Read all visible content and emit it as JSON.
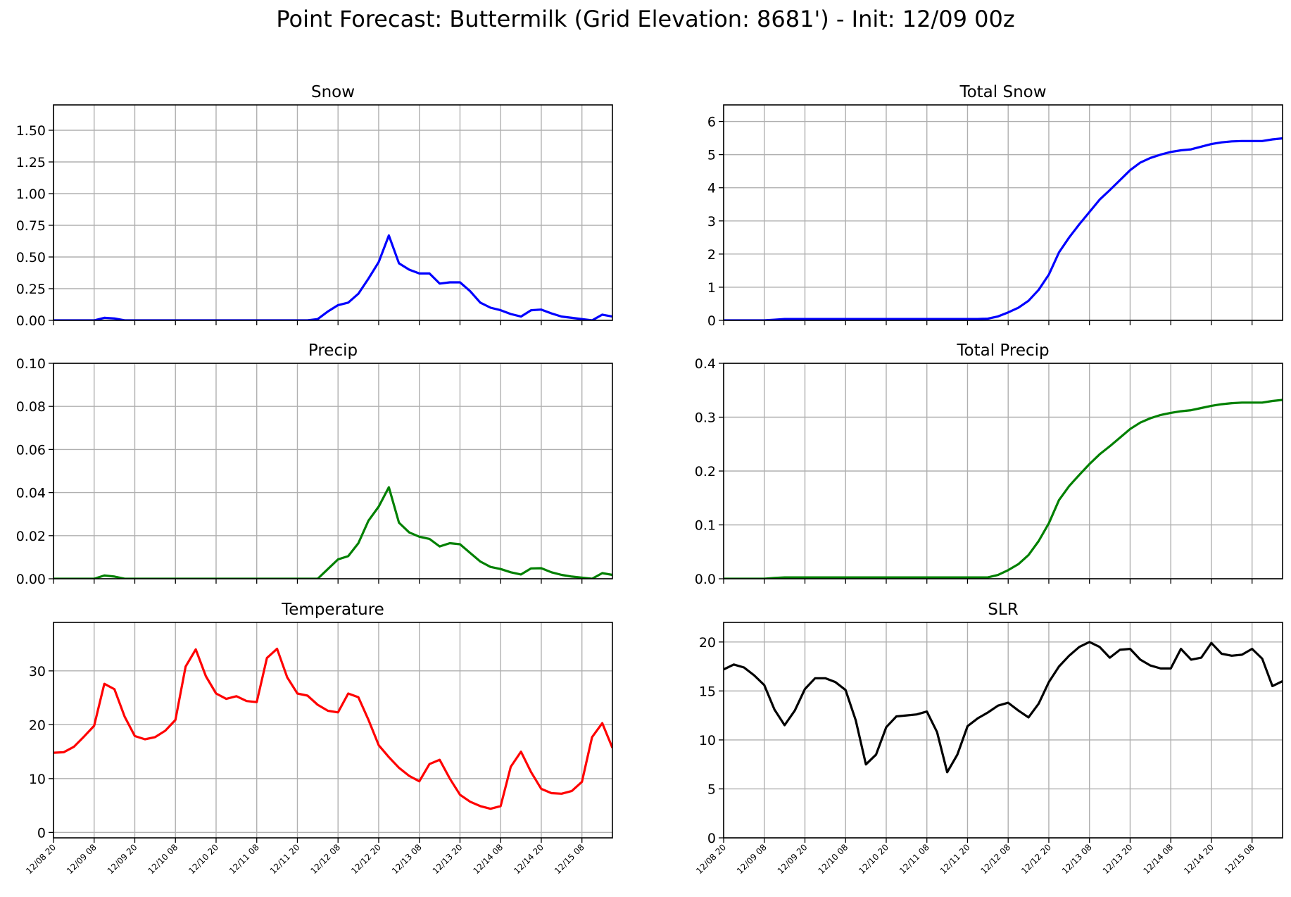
{
  "suptitle": "Point Forecast: Buttermilk (Grid Elevation: 8681') - Init: 12/09 00z",
  "x_tick_labels": [
    "12/08 20",
    "12/09 08",
    "12/09 20",
    "12/10 08",
    "12/10 20",
    "12/11 08",
    "12/11 20",
    "12/12 08",
    "12/12 20",
    "12/13 08",
    "12/13 20",
    "12/14 08",
    "12/14 20",
    "12/15 08"
  ],
  "chart_data": [
    {
      "type": "line",
      "title": "Snow",
      "xlabel": "",
      "ylabel": "",
      "color": "#0000ff",
      "ylim": [
        0,
        1.7
      ],
      "yticks": [
        0,
        0.25,
        0.5,
        0.75,
        1.0,
        1.25,
        1.5
      ],
      "ytick_labels": [
        "0.00",
        "0.25",
        "0.50",
        "0.75",
        "1.00",
        "1.25",
        "1.50"
      ],
      "grid": true,
      "x_hours": [
        0,
        3,
        6,
        9,
        12,
        15,
        18,
        21,
        24,
        27,
        30,
        33,
        36,
        39,
        42,
        45,
        48,
        51,
        54,
        57,
        60,
        63,
        66,
        69,
        72,
        75,
        78,
        81,
        84,
        87,
        90,
        93,
        96,
        99,
        102,
        105,
        108,
        111,
        114,
        117,
        120,
        123,
        126,
        129,
        132,
        135,
        138,
        141,
        144,
        147,
        150,
        153,
        156,
        159,
        162,
        165
      ],
      "values": [
        0,
        0,
        0,
        0,
        0,
        0.02,
        0.015,
        0,
        0,
        0,
        0,
        0,
        0,
        0,
        0,
        0,
        0,
        0,
        0,
        0,
        0,
        0,
        0,
        0,
        0,
        0,
        0.01,
        0.07,
        0.12,
        0.14,
        0.21,
        0.33,
        0.46,
        0.67,
        0.45,
        0.4,
        0.37,
        0.37,
        0.29,
        0.3,
        0.3,
        0.23,
        0.14,
        0.1,
        0.08,
        0.05,
        0.03,
        0.08,
        0.085,
        0.055,
        0.03,
        0.02,
        0.01,
        0,
        0.045,
        0.03
      ]
    },
    {
      "type": "line",
      "title": "Total Snow",
      "xlabel": "",
      "ylabel": "",
      "color": "#0000ff",
      "ylim": [
        0,
        6.5
      ],
      "yticks": [
        0,
        1,
        2,
        3,
        4,
        5,
        6
      ],
      "ytick_labels": [
        "0",
        "1",
        "2",
        "3",
        "4",
        "5",
        "6"
      ],
      "grid": true,
      "x_hours": [
        0,
        3,
        6,
        9,
        12,
        15,
        18,
        21,
        24,
        27,
        30,
        33,
        36,
        39,
        42,
        45,
        48,
        51,
        54,
        57,
        60,
        63,
        66,
        69,
        72,
        75,
        78,
        81,
        84,
        87,
        90,
        93,
        96,
        99,
        102,
        105,
        108,
        111,
        114,
        117,
        120,
        123,
        126,
        129,
        132,
        135,
        138,
        141,
        144,
        147,
        150,
        153,
        156,
        159,
        162,
        165
      ],
      "values": [
        0,
        0,
        0,
        0,
        0,
        0.02,
        0.04,
        0.04,
        0.04,
        0.04,
        0.04,
        0.04,
        0.04,
        0.04,
        0.04,
        0.04,
        0.04,
        0.04,
        0.04,
        0.04,
        0.04,
        0.04,
        0.04,
        0.04,
        0.04,
        0.04,
        0.05,
        0.12,
        0.24,
        0.38,
        0.59,
        0.92,
        1.38,
        2.05,
        2.5,
        2.9,
        3.27,
        3.64,
        3.93,
        4.23,
        4.53,
        4.76,
        4.9,
        5.0,
        5.08,
        5.13,
        5.16,
        5.24,
        5.32,
        5.37,
        5.4,
        5.41,
        5.41,
        5.41,
        5.46,
        5.49
      ]
    },
    {
      "type": "line",
      "title": "Precip",
      "xlabel": "",
      "ylabel": "",
      "color": "#008000",
      "ylim": [
        0,
        0.1
      ],
      "yticks": [
        0,
        0.02,
        0.04,
        0.06,
        0.08,
        0.1
      ],
      "ytick_labels": [
        "0.00",
        "0.02",
        "0.04",
        "0.06",
        "0.08",
        "0.10"
      ],
      "grid": true,
      "x_hours": [
        0,
        3,
        6,
        9,
        12,
        15,
        18,
        21,
        24,
        27,
        30,
        33,
        36,
        39,
        42,
        45,
        48,
        51,
        54,
        57,
        60,
        63,
        66,
        69,
        72,
        75,
        78,
        81,
        84,
        87,
        90,
        93,
        96,
        99,
        102,
        105,
        108,
        111,
        114,
        117,
        120,
        123,
        126,
        129,
        132,
        135,
        138,
        141,
        144,
        147,
        150,
        153,
        156,
        159,
        162,
        165
      ],
      "values": [
        0,
        0,
        0,
        0,
        0,
        0.0015,
        0.001,
        0,
        0,
        0,
        0,
        0,
        0,
        0,
        0,
        0,
        0,
        0,
        0,
        0,
        0,
        0,
        0,
        0,
        0,
        0,
        0,
        0.0045,
        0.009,
        0.0105,
        0.0165,
        0.027,
        0.0335,
        0.0425,
        0.026,
        0.0215,
        0.0195,
        0.0185,
        0.015,
        0.0165,
        0.016,
        0.012,
        0.008,
        0.0055,
        0.0045,
        0.003,
        0.002,
        0.0048,
        0.0049,
        0.003,
        0.0018,
        0.001,
        0.0005,
        0,
        0.0026,
        0.0018
      ]
    },
    {
      "type": "line",
      "title": "Total Precip",
      "xlabel": "",
      "ylabel": "",
      "color": "#008000",
      "ylim": [
        0,
        0.4
      ],
      "yticks": [
        0,
        0.1,
        0.2,
        0.3,
        0.4
      ],
      "ytick_labels": [
        "0.0",
        "0.1",
        "0.2",
        "0.3",
        "0.4"
      ],
      "grid": true,
      "x_hours": [
        0,
        3,
        6,
        9,
        12,
        15,
        18,
        21,
        24,
        27,
        30,
        33,
        36,
        39,
        42,
        45,
        48,
        51,
        54,
        57,
        60,
        63,
        66,
        69,
        72,
        75,
        78,
        81,
        84,
        87,
        90,
        93,
        96,
        99,
        102,
        105,
        108,
        111,
        114,
        117,
        120,
        123,
        126,
        129,
        132,
        135,
        138,
        141,
        144,
        147,
        150,
        153,
        156,
        159,
        162,
        165
      ],
      "values": [
        0,
        0,
        0,
        0,
        0,
        0.0015,
        0.0025,
        0.0025,
        0.0025,
        0.0025,
        0.0025,
        0.0025,
        0.0025,
        0.0025,
        0.0025,
        0.0025,
        0.0025,
        0.0025,
        0.0025,
        0.0025,
        0.0025,
        0.0025,
        0.0025,
        0.0025,
        0.0025,
        0.0025,
        0.0025,
        0.007,
        0.016,
        0.027,
        0.044,
        0.07,
        0.103,
        0.146,
        0.172,
        0.193,
        0.213,
        0.231,
        0.246,
        0.262,
        0.278,
        0.29,
        0.298,
        0.304,
        0.308,
        0.311,
        0.313,
        0.317,
        0.321,
        0.324,
        0.326,
        0.327,
        0.327,
        0.327,
        0.33,
        0.332
      ]
    },
    {
      "type": "line",
      "title": "Temperature",
      "xlabel": "",
      "ylabel": "",
      "color": "#ff0000",
      "ylim": [
        -1,
        39
      ],
      "yticks": [
        0,
        10,
        20,
        30
      ],
      "ytick_labels": [
        "0",
        "10",
        "20",
        "30"
      ],
      "grid": true,
      "x_hours": [
        0,
        3,
        6,
        9,
        12,
        15,
        18,
        21,
        24,
        27,
        30,
        33,
        36,
        39,
        42,
        45,
        48,
        51,
        54,
        57,
        60,
        63,
        66,
        69,
        72,
        75,
        78,
        81,
        84,
        87,
        90,
        93,
        96,
        99,
        102,
        105,
        108,
        111,
        114,
        117,
        120,
        123,
        126,
        129,
        132,
        135,
        138,
        141,
        144,
        147,
        150,
        153,
        156,
        159,
        162,
        165
      ],
      "values": [
        14.8,
        14.9,
        15.9,
        17.8,
        19.8,
        27.6,
        26.6,
        21.5,
        17.9,
        17.3,
        17.7,
        18.9,
        20.9,
        30.8,
        34.0,
        29.0,
        25.8,
        24.8,
        25.3,
        24.4,
        24.2,
        32.4,
        34.1,
        28.8,
        25.8,
        25.4,
        23.7,
        22.6,
        22.3,
        25.8,
        25.1,
        20.9,
        16.2,
        14.0,
        12.0,
        10.5,
        9.5,
        12.7,
        13.5,
        10.0,
        7.0,
        5.7,
        4.9,
        4.4,
        4.9,
        12.2,
        15.0,
        11.2,
        8.1,
        7.3,
        7.2,
        7.7,
        9.4,
        17.7,
        20.3,
        15.7
      ]
    },
    {
      "type": "line",
      "title": "SLR",
      "xlabel": "",
      "ylabel": "",
      "color": "#000000",
      "ylim": [
        0,
        22
      ],
      "yticks": [
        0,
        5,
        10,
        15,
        20
      ],
      "ytick_labels": [
        "0",
        "5",
        "10",
        "15",
        "20"
      ],
      "grid": true,
      "x_hours": [
        0,
        3,
        6,
        9,
        12,
        15,
        18,
        21,
        24,
        27,
        30,
        33,
        36,
        39,
        42,
        45,
        48,
        51,
        54,
        57,
        60,
        63,
        66,
        69,
        72,
        75,
        78,
        81,
        84,
        87,
        90,
        93,
        96,
        99,
        102,
        105,
        108,
        111,
        114,
        117,
        120,
        123,
        126,
        129,
        132,
        135,
        138,
        141,
        144,
        147,
        150,
        153,
        156,
        159,
        162,
        165
      ],
      "values": [
        17.2,
        17.7,
        17.4,
        16.6,
        15.6,
        13.1,
        11.5,
        13.0,
        15.2,
        16.3,
        16.3,
        15.9,
        15.1,
        12.0,
        7.5,
        8.5,
        11.3,
        12.4,
        12.5,
        12.6,
        12.9,
        10.8,
        6.7,
        8.5,
        11.4,
        12.2,
        12.8,
        13.5,
        13.8,
        13.0,
        12.3,
        13.7,
        15.9,
        17.5,
        18.6,
        19.5,
        20.0,
        19.5,
        18.4,
        19.2,
        19.3,
        18.2,
        17.6,
        17.3,
        17.3,
        19.3,
        18.2,
        18.4,
        19.9,
        18.8,
        18.6,
        18.7,
        19.3,
        18.3,
        15.5,
        16.0
      ]
    }
  ]
}
